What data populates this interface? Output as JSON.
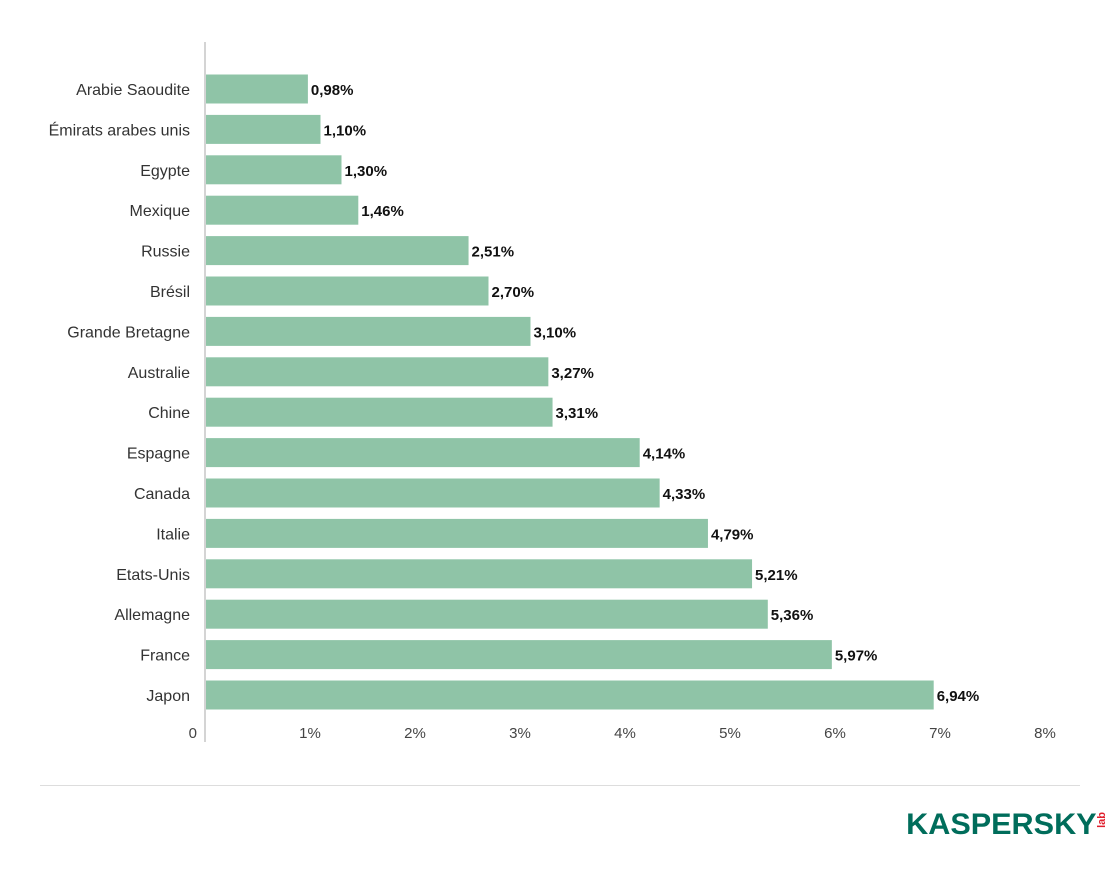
{
  "chart_data": {
    "type": "bar",
    "orientation": "horizontal",
    "categories": [
      "Arabie Saoudite",
      "Émirats arabes unis",
      "Egypte",
      "Mexique",
      "Russie",
      "Brésil",
      "Grande Bretagne",
      "Australie",
      "Chine",
      "Espagne",
      "Canada",
      "Italie",
      "Etats-Unis",
      "Allemagne",
      "France",
      "Japon"
    ],
    "values": [
      0.98,
      1.1,
      1.3,
      1.46,
      2.51,
      2.7,
      3.1,
      3.27,
      3.31,
      4.14,
      4.33,
      4.79,
      5.21,
      5.36,
      5.97,
      6.94
    ],
    "value_labels": [
      "0,98%",
      "1,10%",
      "1,30%",
      "1,46%",
      "2,51%",
      "2,70%",
      "3,10%",
      "3,27%",
      "3,31%",
      "4,14%",
      "4,33%",
      "4,79%",
      "5,21%",
      "5,36%",
      "5,97%",
      "6,94%"
    ],
    "xlim": [
      0,
      8
    ],
    "x_ticks": [
      0,
      1,
      2,
      3,
      4,
      5,
      6,
      7,
      8
    ],
    "x_tick_labels": [
      "0",
      "1%",
      "2%",
      "3%",
      "4%",
      "5%",
      "6%",
      "7%",
      "8%"
    ],
    "grid": false,
    "title": "",
    "xlabel": "",
    "ylabel": "",
    "bar_color": "#8fc4a7"
  },
  "brand": {
    "logo_word": "KASPERSKY",
    "logo_suffix": "lab",
    "color_primary": "#006d5b",
    "color_accent": "#e01f2d"
  }
}
